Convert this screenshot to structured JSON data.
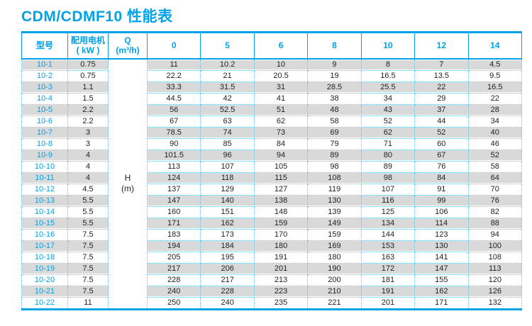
{
  "title": "CDM/CDMF10 性能表",
  "colors": {
    "accent": "#00a2e8",
    "dotted_border": "#5bc6ee",
    "row_shade": "#d9d9d9",
    "text": "#1f1f1f"
  },
  "table": {
    "headers": {
      "model": "型号",
      "motor_line1": "配用电机",
      "motor_line2": "( kW )",
      "q_line1": "Q",
      "q_line2": "(m³/h)",
      "flow_columns": [
        "0",
        "5",
        "6",
        "8",
        "10",
        "12",
        "14"
      ]
    },
    "h_label_line1": "H",
    "h_label_line2": "(m)",
    "rows": [
      {
        "model": "10-1",
        "kw": "0.75",
        "values": [
          "11",
          "10.2",
          "10",
          "9",
          "8",
          "7",
          "4.5"
        ]
      },
      {
        "model": "10-2",
        "kw": "0.75",
        "values": [
          "22.2",
          "21",
          "20.5",
          "19",
          "16.5",
          "13.5",
          "9.5"
        ]
      },
      {
        "model": "10-3",
        "kw": "1.1",
        "values": [
          "33.3",
          "31.5",
          "31",
          "28.5",
          "25.5",
          "22",
          "16.5"
        ]
      },
      {
        "model": "10-4",
        "kw": "1.5",
        "values": [
          "44.5",
          "42",
          "41",
          "38",
          "34",
          "29",
          "22"
        ]
      },
      {
        "model": "10-5",
        "kw": "2.2",
        "values": [
          "56",
          "52.5",
          "51",
          "48",
          "43",
          "37",
          "28"
        ]
      },
      {
        "model": "10-6",
        "kw": "2.2",
        "values": [
          "67",
          "63",
          "62",
          "58",
          "52",
          "44",
          "34"
        ]
      },
      {
        "model": "10-7",
        "kw": "3",
        "values": [
          "78.5",
          "74",
          "73",
          "69",
          "62",
          "52",
          "40"
        ]
      },
      {
        "model": "10-8",
        "kw": "3",
        "values": [
          "90",
          "85",
          "84",
          "79",
          "71",
          "60",
          "46"
        ]
      },
      {
        "model": "10-9",
        "kw": "4",
        "values": [
          "101.5",
          "96",
          "94",
          "89",
          "80",
          "67",
          "52"
        ]
      },
      {
        "model": "10-10",
        "kw": "4",
        "values": [
          "113",
          "107",
          "105",
          "98",
          "89",
          "76",
          "58"
        ]
      },
      {
        "model": "10-11",
        "kw": "4",
        "values": [
          "124",
          "118",
          "115",
          "108",
          "98",
          "84",
          "64"
        ]
      },
      {
        "model": "10-12",
        "kw": "4.5",
        "values": [
          "137",
          "129",
          "127",
          "119",
          "107",
          "91",
          "70"
        ]
      },
      {
        "model": "10-13",
        "kw": "5.5",
        "values": [
          "147",
          "140",
          "138",
          "130",
          "116",
          "99",
          "76"
        ]
      },
      {
        "model": "10-14",
        "kw": "5.5",
        "values": [
          "160",
          "151",
          "148",
          "139",
          "125",
          "106",
          "82"
        ]
      },
      {
        "model": "10-15",
        "kw": "5.5",
        "values": [
          "171",
          "162",
          "159",
          "149",
          "134",
          "114",
          "88"
        ]
      },
      {
        "model": "10-16",
        "kw": "7.5",
        "values": [
          "183",
          "173",
          "170",
          "159",
          "144",
          "123",
          "94"
        ]
      },
      {
        "model": "10-17",
        "kw": "7.5",
        "values": [
          "194",
          "184",
          "180",
          "169",
          "153",
          "130",
          "100"
        ]
      },
      {
        "model": "10-18",
        "kw": "7.5",
        "values": [
          "205",
          "195",
          "191",
          "180",
          "163",
          "141",
          "108"
        ]
      },
      {
        "model": "10-19",
        "kw": "7.5",
        "values": [
          "217",
          "206",
          "201",
          "190",
          "172",
          "147",
          "113"
        ]
      },
      {
        "model": "10-20",
        "kw": "7.5",
        "values": [
          "228",
          "217",
          "213",
          "200",
          "181",
          "155",
          "120"
        ]
      },
      {
        "model": "10-21",
        "kw": "7.5",
        "values": [
          "240",
          "228",
          "223",
          "210",
          "191",
          "162",
          "126"
        ]
      },
      {
        "model": "10-22",
        "kw": "11",
        "values": [
          "250",
          "240",
          "235",
          "221",
          "201",
          "171",
          "132"
        ]
      }
    ]
  }
}
